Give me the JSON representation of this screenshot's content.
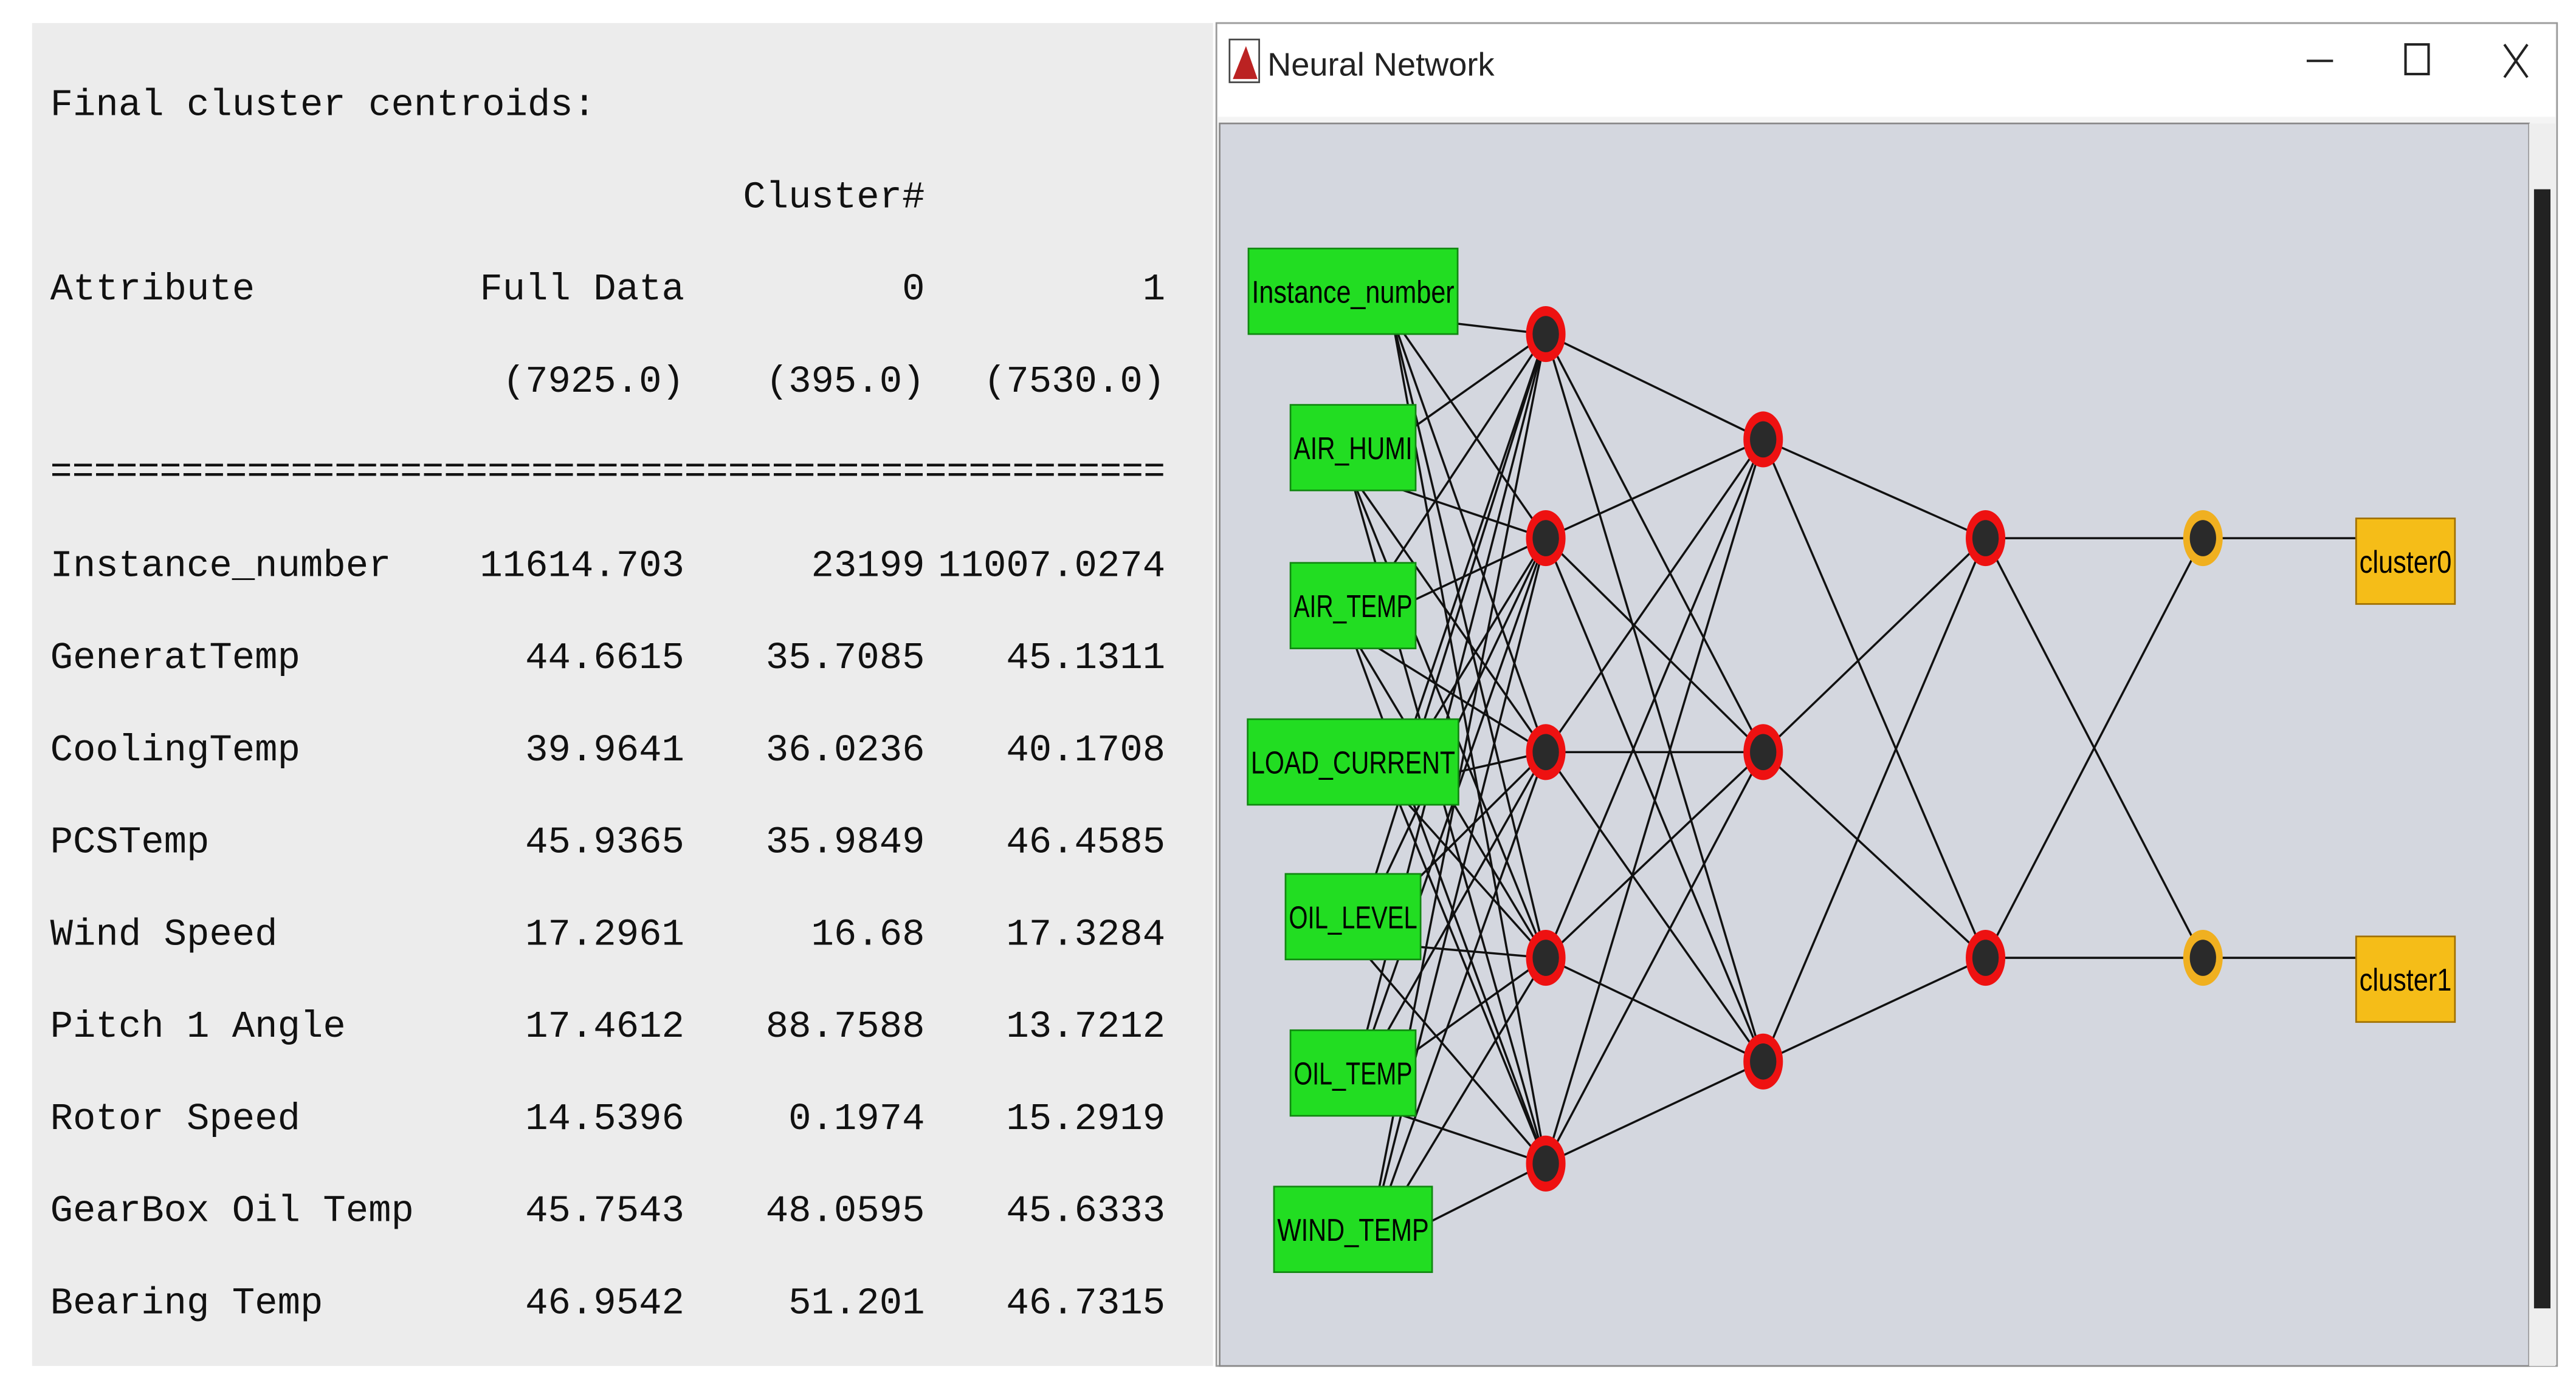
{
  "clusterer": {
    "heading": "Final cluster centroids:",
    "cluster_label": "Cluster#",
    "columns": [
      "Attribute",
      "Full Data",
      "0",
      "1"
    ],
    "counts": [
      "(7925.0)",
      "(395.0)",
      "(7530.0)"
    ],
    "separator": "===================================================",
    "rows": [
      [
        "Instance_number",
        "11614.703",
        "23199",
        "11007.0274"
      ],
      [
        "GeneratTemp",
        "44.6615",
        "35.7085",
        "45.1311"
      ],
      [
        "CoolingTemp",
        "39.9641",
        "36.0236",
        "40.1708"
      ],
      [
        "PCSTemp",
        "45.9365",
        "35.9849",
        "46.4585"
      ],
      [
        "Wind Speed",
        "17.2961",
        "16.68",
        "17.3284"
      ],
      [
        "Pitch 1 Angle",
        "17.4612",
        "88.7588",
        "13.7212"
      ],
      [
        "Rotor Speed",
        "14.5396",
        "0.1974",
        "15.2919"
      ],
      [
        "GearBox Oil Temp",
        "45.7543",
        "48.0595",
        "45.6333"
      ],
      [
        "Bearing Temp",
        "46.9542",
        "51.201",
        "46.7315"
      ]
    ]
  },
  "window": {
    "title": "Neural Network",
    "inputs": [
      "Instance_number",
      "AIR_HUMI",
      "AIR_TEMP",
      "LOAD_CURRENT",
      "OIL_LEVEL",
      "OIL_TEMP",
      "WIND_TEMP"
    ],
    "outputs": [
      "cluster0",
      "cluster1"
    ]
  }
}
